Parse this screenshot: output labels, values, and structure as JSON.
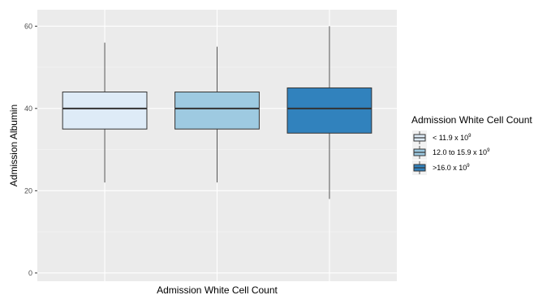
{
  "chart_data": {
    "type": "boxplot",
    "xlabel": "Admission White Cell Count",
    "ylabel": "Admission Albumin",
    "ylim": [
      -2,
      64
    ],
    "yticks": [
      "0",
      "20",
      "40",
      "60"
    ],
    "ytick_values": [
      0,
      20,
      40,
      60
    ],
    "grid": true,
    "legend_placement": "right",
    "legend_title": "Admission White Cell Count",
    "series": [
      {
        "name": "< 11.9 x 10",
        "sup": "9",
        "color": "#deebf7",
        "min": 22,
        "q1": 35,
        "median": 40,
        "q3": 44,
        "max": 56
      },
      {
        "name": "12.0 to 15.9 x 10",
        "sup": "9",
        "color": "#9ecae1",
        "min": 22,
        "q1": 35,
        "median": 40,
        "q3": 44,
        "max": 55
      },
      {
        "name": ">16.0 x 10",
        "sup": "9",
        "color": "#3182bd",
        "min": 18,
        "q1": 34,
        "median": 40,
        "q3": 45,
        "max": 60
      }
    ]
  }
}
